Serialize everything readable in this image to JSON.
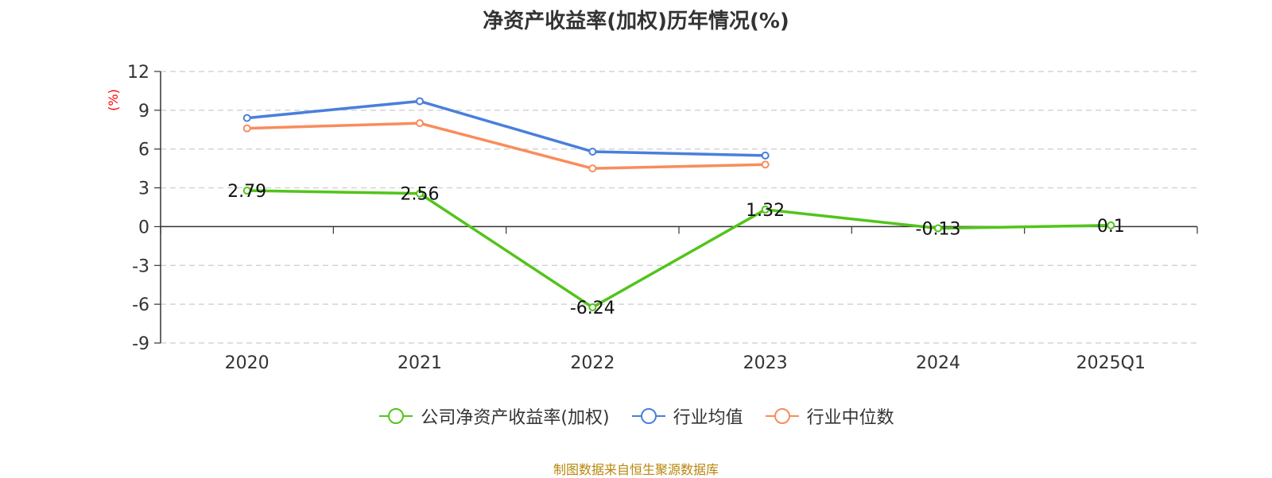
{
  "chart_data": {
    "type": "line",
    "title": "净资产收益率(加权)历年情况(%)",
    "ylabel": "(%)",
    "xlabel": "",
    "categories": [
      "2020",
      "2021",
      "2022",
      "2023",
      "2024",
      "2025Q1"
    ],
    "ylim": [
      -9,
      12
    ],
    "yticks": [
      12,
      9,
      6,
      3,
      0,
      -3,
      -6,
      -9
    ],
    "grid": true,
    "legend_position": "bottom",
    "series": [
      {
        "name": "公司净资产收益率(加权)",
        "color": "#52c41a",
        "values": [
          2.79,
          2.56,
          -6.24,
          1.32,
          -0.13,
          0.1
        ],
        "labels": [
          "2.79",
          "2.56",
          "-6.24",
          "1.32",
          "-0.13",
          "0.1"
        ]
      },
      {
        "name": "行业均值",
        "color": "#4a7fdc",
        "values": [
          8.4,
          9.7,
          5.8,
          5.5,
          null,
          null
        ]
      },
      {
        "name": "行业中位数",
        "color": "#f98c5c",
        "values": [
          7.6,
          8.0,
          4.5,
          4.8,
          null,
          null
        ]
      }
    ]
  },
  "footer": {
    "source": "制图数据来自恒生聚源数据库"
  }
}
